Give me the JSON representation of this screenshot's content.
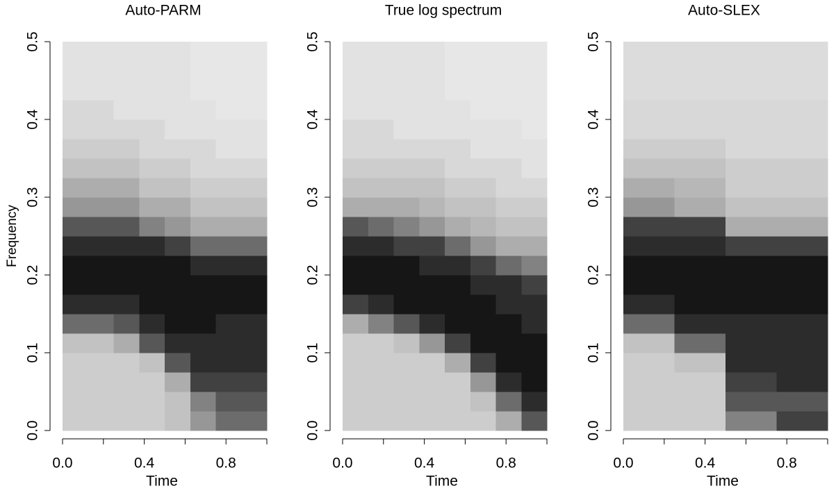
{
  "chart_data": [
    {
      "type": "heatmap",
      "title": "Auto-PARM",
      "x_label": "Time",
      "y_label": "Frequency",
      "x_edges": [
        0,
        0.125,
        0.25,
        0.375,
        0.5,
        0.625,
        0.75,
        0.875,
        1
      ],
      "y_edges": [
        0,
        0.025,
        0.05,
        0.075,
        0.1,
        0.125,
        0.15,
        0.175,
        0.2,
        0.225,
        0.25,
        0.275,
        0.3,
        0.325,
        0.35,
        0.375,
        0.4,
        0.425,
        0.45,
        0.475,
        0.5
      ],
      "z": [
        [
          1.5,
          1.5,
          1.5,
          1.5,
          2,
          6,
          9,
          10,
          10,
          9,
          7,
          4,
          3,
          2,
          1.5,
          1,
          1,
          0.5,
          0.5,
          0.5
        ],
        [
          1.5,
          1.5,
          1.5,
          1.5,
          2,
          6,
          9,
          10,
          10,
          9,
          7,
          4,
          3,
          2,
          1.5,
          1,
          1,
          0.5,
          0.5,
          0.5
        ],
        [
          1.5,
          1.5,
          1.5,
          1.5,
          3,
          7,
          9,
          10,
          10,
          9,
          7,
          4,
          3,
          2,
          1.5,
          1,
          0.5,
          0.5,
          0.5,
          0.5
        ],
        [
          1.5,
          1.5,
          1.5,
          2,
          7,
          9,
          10,
          10,
          10,
          9,
          5,
          3,
          2,
          1.5,
          1,
          1,
          0.5,
          0.5,
          0.5,
          0.5
        ],
        [
          2,
          2,
          3,
          7,
          9,
          10,
          10,
          10,
          10,
          8,
          4,
          3,
          2,
          1.5,
          1,
          0.5,
          0.5,
          0.5,
          0.5,
          0.5
        ],
        [
          4,
          5,
          8,
          9,
          9,
          10,
          10,
          10,
          9,
          6,
          3,
          2,
          1.5,
          1,
          1,
          0.5,
          0.5,
          0.3,
          0.3,
          0.3
        ],
        [
          6,
          7,
          8,
          9,
          9,
          9,
          10,
          10,
          9,
          6,
          3,
          2,
          1.5,
          1,
          0.5,
          0.5,
          0.3,
          0.3,
          0.3,
          0.3
        ],
        [
          6,
          7,
          8,
          9,
          9,
          9,
          10,
          10,
          9,
          6,
          3,
          2,
          1.5,
          1,
          0.5,
          0.5,
          0.3,
          0.3,
          0.3,
          0.3
        ]
      ],
      "zlim": [
        0,
        10
      ],
      "colormap": "gray-reversed",
      "xlim": [
        0,
        1
      ],
      "ylim": [
        0,
        0.5
      ],
      "xticks": [
        {
          "value": 0,
          "label": "0.0"
        },
        0.4,
        0.8
      ],
      "xticks_unlabeled": [
        0.2,
        0.6,
        1
      ],
      "yticks": [
        {
          "value": 0,
          "label": "0.0"
        },
        0.1,
        0.2,
        0.3,
        0.4,
        0.5
      ]
    },
    {
      "type": "heatmap",
      "title": "True log spectrum",
      "x_label": "Time",
      "x_edges": [
        0,
        0.125,
        0.25,
        0.375,
        0.5,
        0.625,
        0.75,
        0.875,
        1
      ],
      "y_edges": [
        0,
        0.025,
        0.05,
        0.075,
        0.1,
        0.125,
        0.15,
        0.175,
        0.2,
        0.225,
        0.25,
        0.275,
        0.3,
        0.325,
        0.35,
        0.375,
        0.4,
        0.425,
        0.45,
        0.475,
        0.5
      ],
      "z": [
        [
          1.5,
          1.5,
          1.5,
          1.5,
          1.5,
          3,
          8,
          10,
          10,
          9,
          7,
          3,
          2,
          1.5,
          1,
          1,
          0.5,
          0.5,
          0.5,
          0.5
        ],
        [
          1.5,
          1.5,
          1.5,
          1.5,
          1.5,
          5,
          9,
          10,
          10,
          9,
          6,
          3,
          2,
          1.5,
          1,
          1,
          0.5,
          0.5,
          0.5,
          0.5
        ],
        [
          1.5,
          1.5,
          1.5,
          1.5,
          2,
          7,
          10,
          10,
          10,
          8,
          5,
          3,
          2,
          1.5,
          1,
          0.5,
          0.5,
          0.5,
          0.5,
          0.5
        ],
        [
          1.5,
          1.5,
          1.5,
          1.5,
          4,
          9,
          10,
          10,
          9,
          8,
          4,
          2.5,
          2,
          1.5,
          1,
          0.5,
          0.5,
          0.5,
          0.5,
          0.5
        ],
        [
          1.5,
          1.5,
          1.5,
          3,
          8,
          10,
          10,
          10,
          9,
          6,
          3,
          2,
          1.5,
          1,
          1,
          0.5,
          0.5,
          0.3,
          0.3,
          0.3
        ],
        [
          1.5,
          2,
          4,
          8,
          10,
          10,
          10,
          9,
          8,
          4,
          2.5,
          2,
          1.5,
          1,
          0.5,
          0.5,
          0.3,
          0.3,
          0.3,
          0.3
        ],
        [
          3,
          6,
          9,
          10,
          10,
          10,
          9,
          9,
          6,
          3,
          2,
          1.5,
          1,
          1,
          0.5,
          0.5,
          0.3,
          0.3,
          0.3,
          0.3
        ],
        [
          7,
          9,
          10,
          10,
          10,
          9,
          9,
          8,
          5,
          3,
          2,
          1.5,
          1,
          0.5,
          0.5,
          0.3,
          0.3,
          0.3,
          0.3,
          0.3
        ]
      ],
      "zlim": [
        0,
        10
      ],
      "colormap": "gray-reversed",
      "xlim": [
        0,
        1
      ],
      "ylim": [
        0,
        0.5
      ],
      "xticks": [
        {
          "value": 0,
          "label": "0.0"
        },
        0.4,
        0.8
      ],
      "xticks_unlabeled": [
        0.2,
        0.6,
        1
      ],
      "yticks": [
        {
          "value": 0,
          "label": "0.0"
        },
        0.1,
        0.2,
        0.3,
        0.4,
        0.5
      ]
    },
    {
      "type": "heatmap",
      "title": "Auto-SLEX",
      "x_label": "Time",
      "x_edges": [
        0,
        0.125,
        0.25,
        0.375,
        0.5,
        0.625,
        0.75,
        0.875,
        1
      ],
      "y_edges": [
        0,
        0.025,
        0.05,
        0.075,
        0.1,
        0.125,
        0.15,
        0.175,
        0.2,
        0.225,
        0.25,
        0.275,
        0.3,
        0.325,
        0.35,
        0.375,
        0.4,
        0.425,
        0.45,
        0.475,
        0.5
      ],
      "z": [
        [
          1.5,
          1.5,
          1.5,
          1.5,
          2,
          6,
          9,
          10,
          10,
          9,
          8,
          4,
          3,
          2,
          1.5,
          1,
          1,
          0.8,
          0.8,
          0.8
        ],
        [
          1.5,
          1.5,
          1.5,
          1.5,
          2,
          6,
          9,
          10,
          10,
          9,
          8,
          4,
          3,
          2,
          1.5,
          1,
          1,
          0.8,
          0.8,
          0.8
        ],
        [
          1.5,
          1.5,
          1.5,
          2,
          6,
          9,
          10,
          10,
          10,
          9,
          8,
          3,
          2.5,
          2,
          1.5,
          1,
          1,
          0.8,
          0.8,
          0.8
        ],
        [
          1.5,
          1.5,
          1.5,
          2,
          6,
          9,
          10,
          10,
          10,
          9,
          8,
          3,
          2.5,
          2,
          1.5,
          1,
          1,
          0.8,
          0.8,
          0.8
        ],
        [
          5,
          7,
          8,
          9,
          9,
          9,
          10,
          10,
          10,
          8,
          3,
          2,
          1.5,
          1.5,
          1,
          1,
          1,
          0.8,
          0.8,
          0.8
        ],
        [
          5,
          7,
          8,
          9,
          9,
          9,
          10,
          10,
          10,
          8,
          3,
          2,
          1.5,
          1.5,
          1,
          1,
          1,
          0.8,
          0.8,
          0.8
        ],
        [
          8,
          7,
          9,
          9,
          9,
          9,
          10,
          10,
          10,
          8,
          3,
          2,
          1.5,
          1.5,
          1,
          1,
          1,
          0.8,
          0.8,
          0.8
        ],
        [
          8,
          7,
          9,
          9,
          9,
          9,
          10,
          10,
          10,
          8,
          3,
          2,
          1.5,
          1.5,
          1,
          1,
          1,
          0.8,
          0.8,
          0.8
        ]
      ],
      "zlim": [
        0,
        10
      ],
      "colormap": "gray-reversed",
      "xlim": [
        0,
        1
      ],
      "ylim": [
        0,
        0.5
      ],
      "xticks": [
        {
          "value": 0,
          "label": "0.0"
        },
        0.4,
        0.8
      ],
      "xticks_unlabeled": [
        0.2,
        0.6,
        1
      ],
      "yticks": [
        {
          "value": 0,
          "label": "0.0"
        },
        0.1,
        0.2,
        0.3,
        0.4,
        0.5
      ]
    }
  ]
}
